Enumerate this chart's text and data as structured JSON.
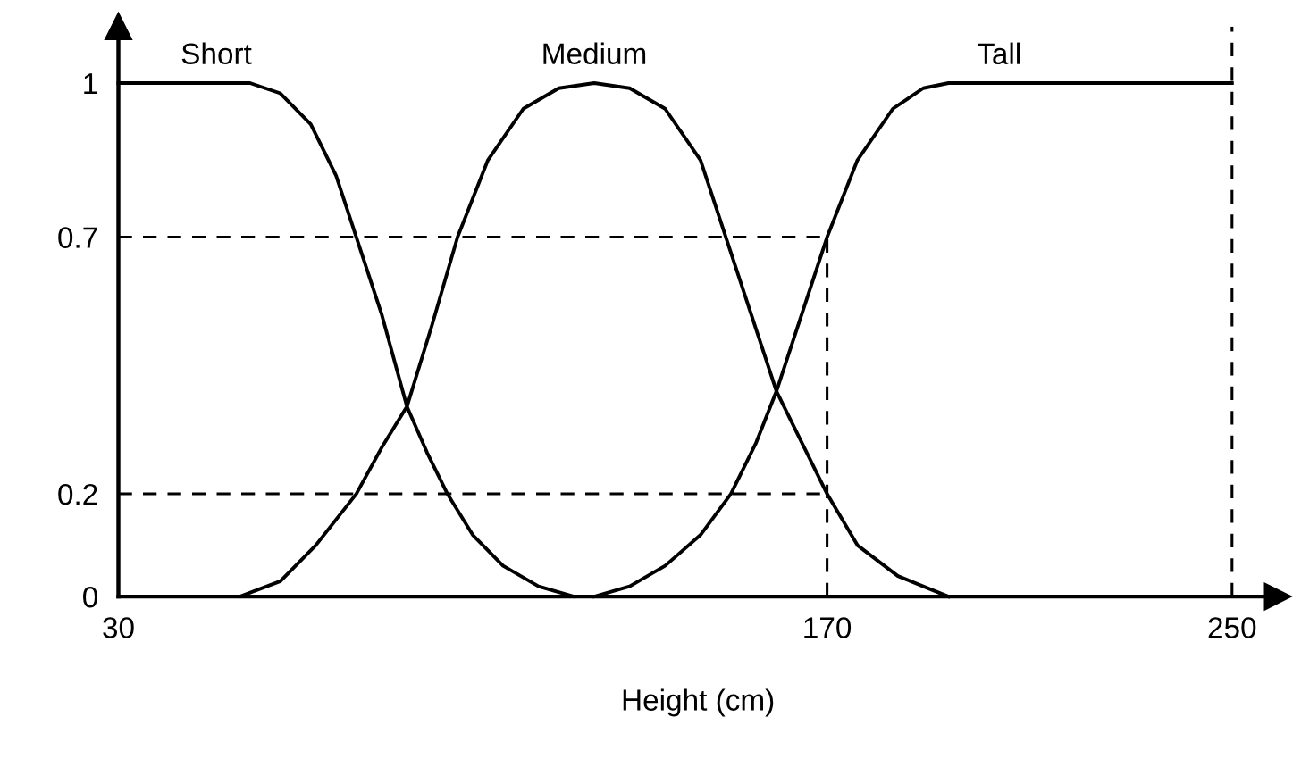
{
  "chart_data": {
    "type": "line",
    "xlabel": "Height (cm)",
    "xlim": [
      30,
      259
    ],
    "ylim": [
      0,
      1.11
    ],
    "xticks": [
      30,
      170,
      250
    ],
    "yticks": [
      0,
      0.2,
      0.7,
      1
    ],
    "grid": false,
    "legend": false,
    "marker": "none",
    "series": [
      {
        "name": "Short",
        "color": "#000000",
        "line_style": "solid",
        "x": [
          30,
          56,
          62,
          68,
          73,
          77,
          82,
          87,
          91,
          95,
          100,
          106,
          113,
          120
        ],
        "values": [
          1,
          1,
          0.98,
          0.92,
          0.82,
          0.7,
          0.55,
          0.37,
          0.28,
          0.2,
          0.12,
          0.06,
          0.02,
          0
        ]
      },
      {
        "name": "Medium",
        "color": "#000000",
        "line_style": "solid",
        "x": [
          54,
          62,
          69,
          77,
          82,
          87,
          92,
          97,
          103,
          110,
          117,
          124,
          131,
          138,
          145,
          150,
          155,
          160,
          165,
          170,
          176,
          184,
          194
        ],
        "values": [
          0,
          0.03,
          0.1,
          0.2,
          0.29,
          0.37,
          0.53,
          0.7,
          0.85,
          0.95,
          0.99,
          1,
          0.99,
          0.95,
          0.85,
          0.7,
          0.55,
          0.4,
          0.3,
          0.2,
          0.1,
          0.04,
          0
        ]
      },
      {
        "name": "Tall",
        "color": "#000000",
        "line_style": "solid",
        "x": [
          124,
          131,
          138,
          145,
          151,
          156,
          160,
          165,
          170,
          176,
          183,
          189,
          194,
          250
        ],
        "values": [
          0,
          0.02,
          0.06,
          0.12,
          0.2,
          0.3,
          0.4,
          0.55,
          0.7,
          0.85,
          0.95,
          0.99,
          1,
          1
        ]
      }
    ],
    "ref_lines": [
      {
        "axis": "y",
        "value": 0.7,
        "color": "#000000",
        "line_style": "dashed"
      },
      {
        "axis": "y",
        "value": 0.2,
        "color": "#000000",
        "line_style": "dashed"
      },
      {
        "axis": "x",
        "value": 170,
        "color": "#000000",
        "line_style": "dashed"
      },
      {
        "axis": "x",
        "value": 250,
        "color": "#000000",
        "line_style": "dashed"
      }
    ]
  }
}
